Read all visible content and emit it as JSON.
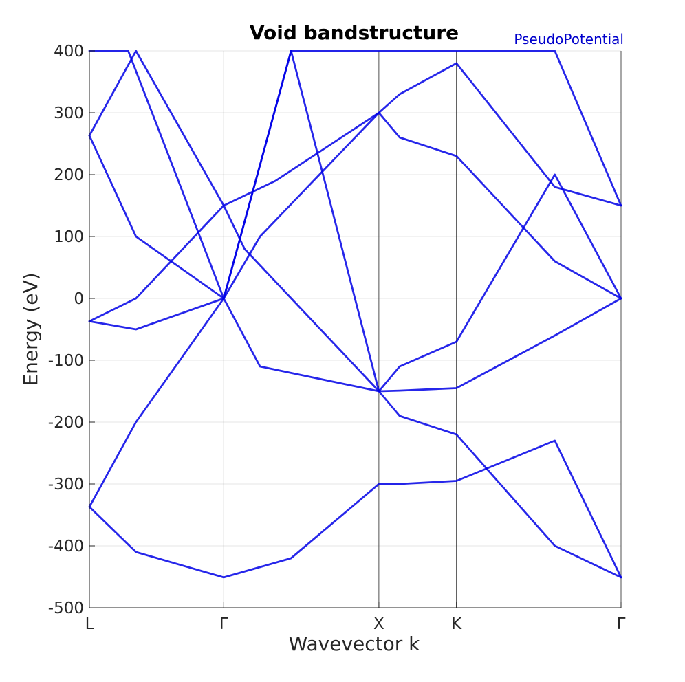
{
  "chart_data": {
    "type": "line",
    "title": "Void bandstructure",
    "annotation": "PseudoPotential",
    "xlabel": "Wavevector k",
    "ylabel": "Energy (eV)",
    "ylim": [
      -500,
      400
    ],
    "yticks": [
      -500,
      -400,
      -300,
      -200,
      -100,
      0,
      100,
      200,
      300,
      400
    ],
    "grid": true,
    "line_color": "#0000e6",
    "annotation_color": "#0000cc",
    "k_points": [
      {
        "label": "L",
        "x": 0.0
      },
      {
        "label": "Γ",
        "x": 0.866
      },
      {
        "label": "X",
        "x": 1.866
      },
      {
        "label": "K",
        "x": 2.366
      },
      {
        "label": "Γ",
        "x": 3.427
      }
    ],
    "bands": [
      {
        "x": [
          0,
          0.3,
          0.866,
          1.1,
          1.866,
          2.0,
          2.366,
          3.0,
          3.427
        ],
        "y": [
          -337,
          -200,
          0,
          -110,
          -150,
          -149,
          -145,
          -60,
          0
        ]
      },
      {
        "x": [
          0,
          0.3,
          0.866,
          1.3,
          1.866,
          2.0,
          2.366,
          3.0,
          3.427
        ],
        "y": [
          -337,
          -410,
          -451,
          -420,
          -300,
          -300,
          -295,
          -230,
          -451
        ]
      },
      {
        "x": [
          0,
          0.3,
          0.866,
          1.1,
          1.866,
          2.0,
          2.366,
          3.0,
          3.427
        ],
        "y": [
          -37,
          -50,
          0,
          100,
          300,
          330,
          380,
          180,
          150
        ]
      },
      {
        "x": [
          0,
          0.3,
          0.866,
          1.2,
          1.866,
          2.0,
          2.366,
          3.0,
          3.427
        ],
        "y": [
          -37,
          0,
          150,
          190,
          300,
          260,
          230,
          60,
          0
        ]
      },
      {
        "x": [
          0,
          0.3,
          0.866,
          1.3,
          1.866,
          2.0,
          2.366,
          3.0,
          3.427
        ],
        "y": [
          263,
          100,
          0,
          400,
          400,
          400,
          400,
          400,
          150
        ]
      },
      {
        "x": [
          0,
          0.3,
          0.866,
          1.0,
          1.866,
          2.0,
          2.366,
          3.0,
          3.427
        ],
        "y": [
          263,
          400,
          150,
          80,
          -150,
          -110,
          -70,
          200,
          0
        ]
      },
      {
        "x": [
          0,
          0.25,
          0.866,
          1.3,
          1.866,
          2.0,
          2.366,
          3.0,
          3.427
        ],
        "y": [
          400,
          400,
          0,
          400,
          -150,
          -190,
          -220,
          -400,
          -451
        ]
      }
    ]
  }
}
